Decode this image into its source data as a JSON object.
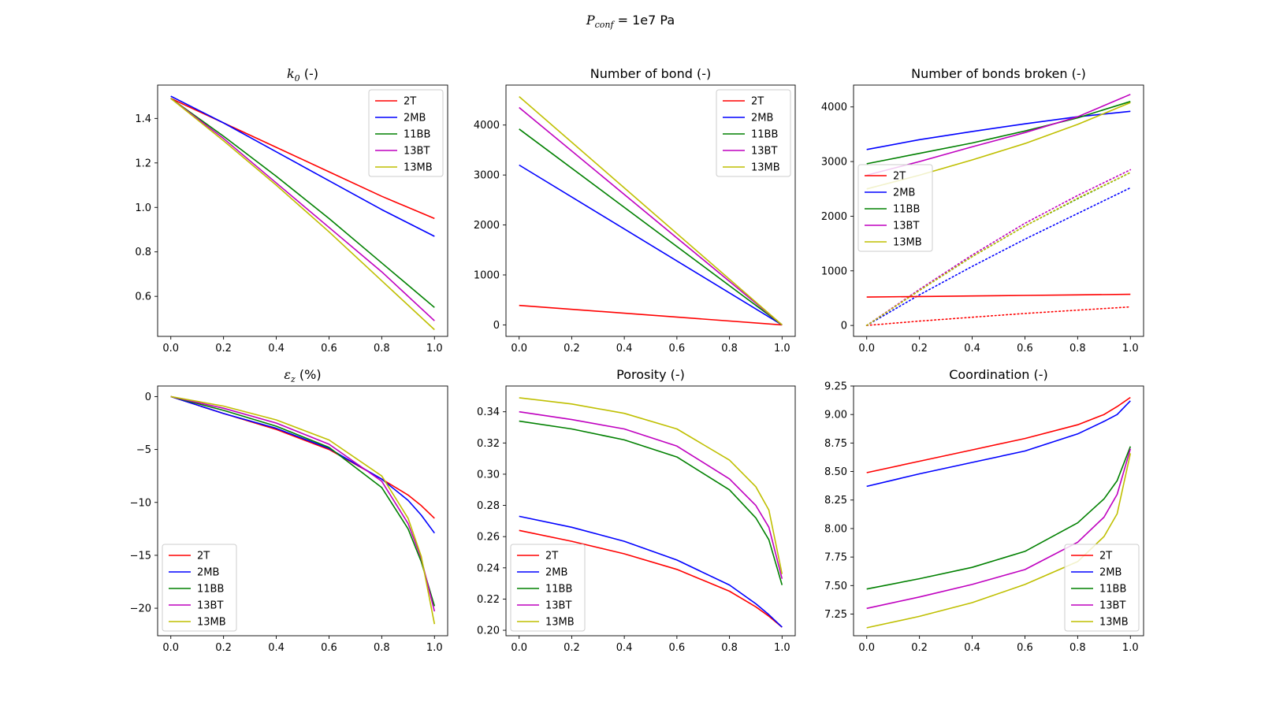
{
  "figure": {
    "suptitle_symbol": "P",
    "suptitle_sub": "conf",
    "suptitle_rest": " = 1e7 Pa"
  },
  "colors": {
    "2T": "#ff0000",
    "2MB": "#0000ff",
    "11BB": "#008000",
    "13BT": "#bf00bf",
    "13MB": "#bfbf00"
  },
  "chart_data": [
    {
      "type": "line",
      "title_main": "k",
      "title_sub": "0",
      "title_rest": " (-)",
      "xlim": [
        -0.05,
        1.05
      ],
      "ylim": [
        0.42,
        1.55
      ],
      "xticks": [
        0.0,
        0.2,
        0.4,
        0.6,
        0.8,
        1.0
      ],
      "xtick_labels": [
        "0.0",
        "0.2",
        "0.4",
        "0.6",
        "0.8",
        "1.0"
      ],
      "yticks": [
        0.6,
        0.8,
        1.0,
        1.2,
        1.4
      ],
      "ytick_labels": [
        "0.6",
        "0.8",
        "1.0",
        "1.2",
        "1.4"
      ],
      "legend": "top-right",
      "x": [
        0.0,
        0.2,
        0.4,
        0.6,
        0.8,
        1.0
      ],
      "series": [
        {
          "name": "2T",
          "values": [
            1.49,
            1.38,
            1.27,
            1.16,
            1.05,
            0.95
          ]
        },
        {
          "name": "2MB",
          "values": [
            1.5,
            1.38,
            1.25,
            1.12,
            0.99,
            0.87
          ]
        },
        {
          "name": "11BB",
          "values": [
            1.49,
            1.32,
            1.14,
            0.95,
            0.75,
            0.55
          ]
        },
        {
          "name": "13BT",
          "values": [
            1.49,
            1.31,
            1.11,
            0.91,
            0.71,
            0.49
          ]
        },
        {
          "name": "13MB",
          "values": [
            1.49,
            1.3,
            1.1,
            0.89,
            0.67,
            0.45
          ]
        }
      ]
    },
    {
      "type": "line",
      "title_main": "Number of bond (-)",
      "xlim": [
        -0.05,
        1.05
      ],
      "ylim": [
        -230,
        4800
      ],
      "xticks": [
        0.0,
        0.2,
        0.4,
        0.6,
        0.8,
        1.0
      ],
      "xtick_labels": [
        "0.0",
        "0.2",
        "0.4",
        "0.6",
        "0.8",
        "1.0"
      ],
      "yticks": [
        0,
        1000,
        2000,
        3000,
        4000
      ],
      "ytick_labels": [
        "0",
        "1000",
        "2000",
        "3000",
        "4000"
      ],
      "legend": "top-right",
      "x": [
        0.0,
        1.0
      ],
      "series": [
        {
          "name": "2T",
          "values": [
            390,
            0
          ]
        },
        {
          "name": "2MB",
          "values": [
            3200,
            0
          ]
        },
        {
          "name": "11BB",
          "values": [
            3920,
            0
          ]
        },
        {
          "name": "13BT",
          "values": [
            4350,
            0
          ]
        },
        {
          "name": "13MB",
          "values": [
            4570,
            0
          ]
        }
      ]
    },
    {
      "type": "line",
      "title_main": "Number of bonds broken (-)",
      "xlim": [
        -0.05,
        1.05
      ],
      "ylim": [
        -200,
        4400
      ],
      "xticks": [
        0.0,
        0.2,
        0.4,
        0.6,
        0.8,
        1.0
      ],
      "xtick_labels": [
        "0.0",
        "0.2",
        "0.4",
        "0.6",
        "0.8",
        "1.0"
      ],
      "yticks": [
        0,
        1000,
        2000,
        3000,
        4000
      ],
      "ytick_labels": [
        "0",
        "1000",
        "2000",
        "3000",
        "4000"
      ],
      "legend": "center-left",
      "x": [
        0.0,
        0.2,
        0.4,
        0.6,
        0.8,
        1.0
      ],
      "series": [
        {
          "name": "2T",
          "values": [
            520,
            530,
            540,
            550,
            560,
            570
          ]
        },
        {
          "name": "2MB",
          "values": [
            3220,
            3400,
            3550,
            3690,
            3820,
            3920
          ]
        },
        {
          "name": "11BB",
          "values": [
            2960,
            3150,
            3340,
            3560,
            3800,
            4100
          ]
        },
        {
          "name": "13BT",
          "values": [
            2750,
            3000,
            3270,
            3530,
            3820,
            4230
          ]
        },
        {
          "name": "13MB",
          "values": [
            2500,
            2750,
            3030,
            3330,
            3680,
            4080
          ]
        }
      ],
      "dotted_series": [
        {
          "name": "2T",
          "values": [
            0,
            80,
            150,
            220,
            280,
            340
          ]
        },
        {
          "name": "2MB",
          "values": [
            0,
            560,
            1080,
            1580,
            2050,
            2520
          ]
        },
        {
          "name": "11BB",
          "values": [
            0,
            640,
            1260,
            1820,
            2320,
            2800
          ]
        },
        {
          "name": "13BT",
          "values": [
            0,
            660,
            1290,
            1870,
            2380,
            2850
          ]
        },
        {
          "name": "13MB",
          "values": [
            0,
            640,
            1260,
            1820,
            2330,
            2800
          ]
        }
      ]
    },
    {
      "type": "line",
      "title_main": "ε",
      "title_sub": "z",
      "title_rest": " (%)",
      "xlim": [
        -0.05,
        1.05
      ],
      "ylim": [
        -22.6,
        1.0
      ],
      "xticks": [
        0.0,
        0.2,
        0.4,
        0.6,
        0.8,
        1.0
      ],
      "xtick_labels": [
        "0.0",
        "0.2",
        "0.4",
        "0.6",
        "0.8",
        "1.0"
      ],
      "yticks": [
        -20,
        -15,
        -10,
        -5,
        0
      ],
      "ytick_labels": [
        "−20",
        "−15",
        "−10",
        "−5",
        "0"
      ],
      "legend": "bottom-left",
      "x": [
        0.0,
        0.2,
        0.4,
        0.6,
        0.8,
        0.9,
        0.95,
        1.0
      ],
      "series": [
        {
          "name": "2T",
          "values": [
            0,
            -1.6,
            -3.1,
            -5.0,
            -7.8,
            -9.3,
            -10.3,
            -11.5
          ]
        },
        {
          "name": "2MB",
          "values": [
            0,
            -1.6,
            -3.0,
            -4.9,
            -7.8,
            -9.8,
            -11.2,
            -12.9
          ]
        },
        {
          "name": "11BB",
          "values": [
            0,
            -1.3,
            -2.8,
            -4.8,
            -8.6,
            -12.5,
            -15.6,
            -19.8
          ]
        },
        {
          "name": "13BT",
          "values": [
            0,
            -1.1,
            -2.5,
            -4.5,
            -8.0,
            -12.0,
            -15.3,
            -20.3
          ]
        },
        {
          "name": "13MB",
          "values": [
            0,
            -0.9,
            -2.2,
            -4.1,
            -7.5,
            -11.5,
            -15.1,
            -21.5
          ]
        }
      ]
    },
    {
      "type": "line",
      "title_main": "Porosity (-)",
      "xlim": [
        -0.05,
        1.05
      ],
      "ylim": [
        0.1965,
        0.3565
      ],
      "xticks": [
        0.0,
        0.2,
        0.4,
        0.6,
        0.8,
        1.0
      ],
      "xtick_labels": [
        "0.0",
        "0.2",
        "0.4",
        "0.6",
        "0.8",
        "1.0"
      ],
      "yticks": [
        0.2,
        0.22,
        0.24,
        0.26,
        0.28,
        0.3,
        0.32,
        0.34
      ],
      "ytick_labels": [
        "0.20",
        "0.22",
        "0.24",
        "0.26",
        "0.28",
        "0.30",
        "0.32",
        "0.34"
      ],
      "legend": "bottom-left",
      "x": [
        0.0,
        0.2,
        0.4,
        0.6,
        0.8,
        0.9,
        0.95,
        1.0
      ],
      "series": [
        {
          "name": "2T",
          "values": [
            0.264,
            0.257,
            0.249,
            0.239,
            0.225,
            0.215,
            0.209,
            0.202
          ]
        },
        {
          "name": "2MB",
          "values": [
            0.273,
            0.266,
            0.257,
            0.245,
            0.229,
            0.217,
            0.21,
            0.202
          ]
        },
        {
          "name": "11BB",
          "values": [
            0.334,
            0.329,
            0.322,
            0.311,
            0.29,
            0.272,
            0.258,
            0.229
          ]
        },
        {
          "name": "13BT",
          "values": [
            0.34,
            0.335,
            0.329,
            0.318,
            0.297,
            0.28,
            0.266,
            0.233
          ]
        },
        {
          "name": "13MB",
          "values": [
            0.349,
            0.345,
            0.339,
            0.329,
            0.309,
            0.292,
            0.277,
            0.236
          ]
        }
      ]
    },
    {
      "type": "line",
      "title_main": "Coordination (-)",
      "xlim": [
        -0.05,
        1.05
      ],
      "ylim": [
        7.06,
        9.25
      ],
      "xticks": [
        0.0,
        0.2,
        0.4,
        0.6,
        0.8,
        1.0
      ],
      "xtick_labels": [
        "0.0",
        "0.2",
        "0.4",
        "0.6",
        "0.8",
        "1.0"
      ],
      "yticks": [
        7.25,
        7.5,
        7.75,
        8.0,
        8.25,
        8.5,
        8.75,
        9.0,
        9.25
      ],
      "ytick_labels": [
        "7.25",
        "7.50",
        "7.75",
        "8.00",
        "8.25",
        "8.50",
        "8.75",
        "9.00",
        "9.25"
      ],
      "legend": "bottom-right",
      "x": [
        0.0,
        0.2,
        0.4,
        0.6,
        0.8,
        0.9,
        0.95,
        1.0
      ],
      "series": [
        {
          "name": "2T",
          "values": [
            8.49,
            8.59,
            8.69,
            8.79,
            8.91,
            9.0,
            9.07,
            9.15
          ]
        },
        {
          "name": "2MB",
          "values": [
            8.37,
            8.48,
            8.58,
            8.68,
            8.83,
            8.94,
            9.0,
            9.12
          ]
        },
        {
          "name": "11BB",
          "values": [
            7.47,
            7.56,
            7.66,
            7.8,
            8.05,
            8.26,
            8.42,
            8.72
          ]
        },
        {
          "name": "13BT",
          "values": [
            7.3,
            7.4,
            7.51,
            7.64,
            7.88,
            8.1,
            8.3,
            8.7
          ]
        },
        {
          "name": "13MB",
          "values": [
            7.13,
            7.23,
            7.35,
            7.51,
            7.71,
            7.93,
            8.13,
            8.66
          ]
        }
      ]
    }
  ]
}
